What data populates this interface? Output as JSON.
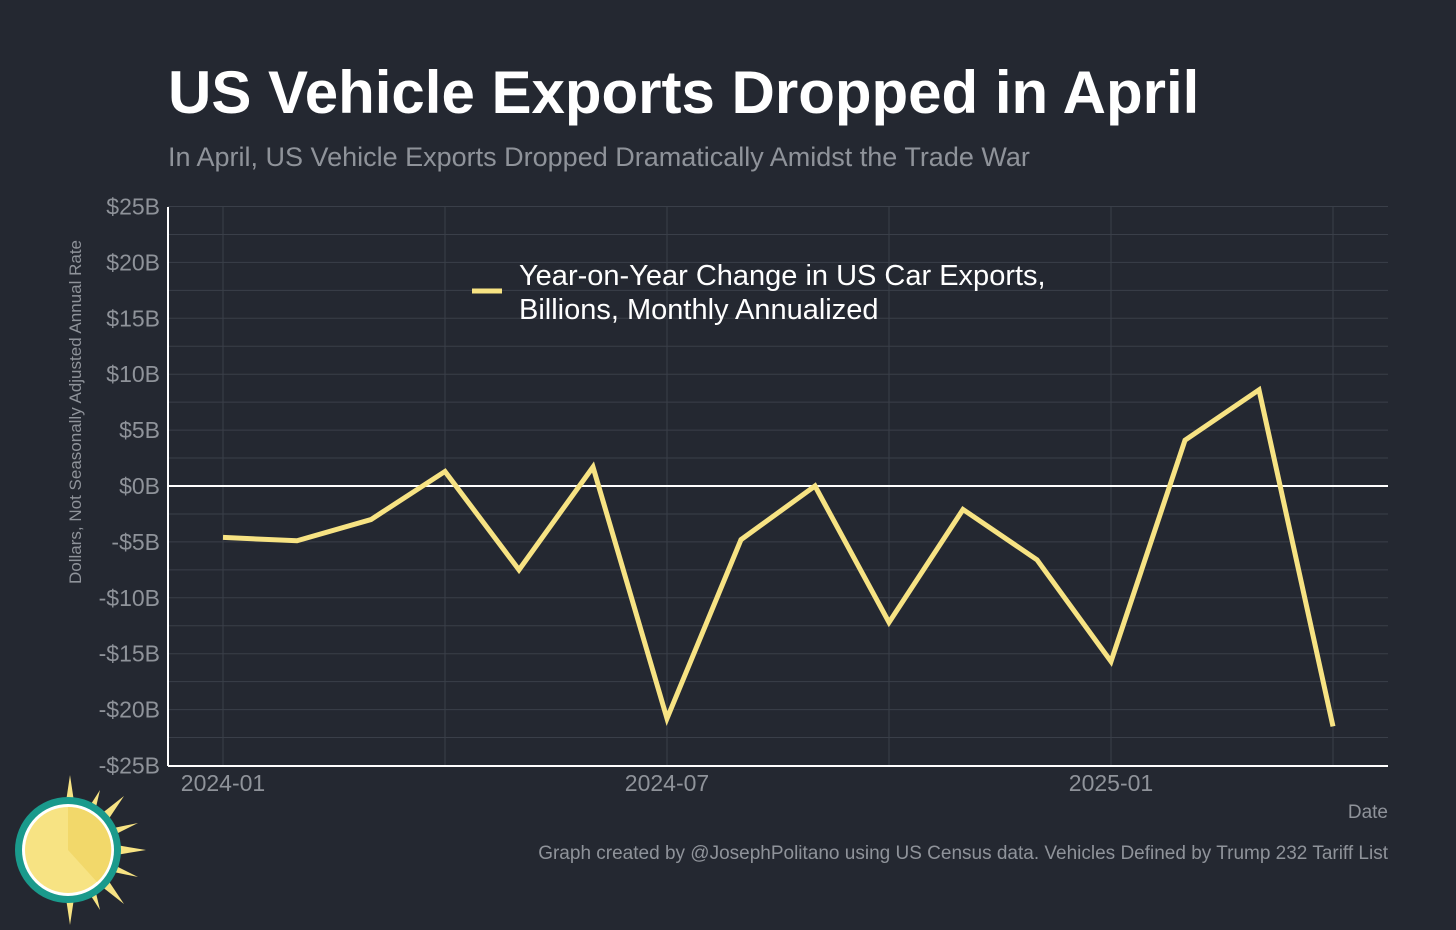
{
  "chart_data": {
    "type": "line",
    "title": "US Vehicle Exports Dropped in April",
    "subtitle": "In April, US Vehicle Exports Dropped Dramatically Amidst the Trade War",
    "xlabel": "Date",
    "ylabel": "Dollars, Not Seasonally Adjusted Annual Rate",
    "caption": "Graph created by @JosephPolitano using US Census data. Vehicles Defined by Trump 232 Tariff List",
    "ylim": [
      -25,
      25
    ],
    "yticks": [
      25,
      20,
      15,
      10,
      5,
      0,
      -5,
      -10,
      -15,
      -20,
      -25
    ],
    "ytick_labels": [
      "$25B",
      "$20B",
      "$15B",
      "$10B",
      "$5B",
      "$0B",
      "-$5B",
      "-$10B",
      "-$15B",
      "-$20B",
      "-$25B"
    ],
    "xtick_labels": [
      "2024-01",
      "2024-07",
      "2025-01"
    ],
    "xtick_index": [
      0,
      6,
      12
    ],
    "legend_placement": "top-center",
    "grid": true,
    "x": [
      "2024-01",
      "2024-02",
      "2024-03",
      "2024-04",
      "2024-05",
      "2024-06",
      "2024-07",
      "2024-08",
      "2024-09",
      "2024-10",
      "2024-11",
      "2024-12",
      "2025-01",
      "2025-02",
      "2025-03",
      "2025-04"
    ],
    "series": [
      {
        "name": "Year-on-Year Change in US Car Exports, Billions, Monthly Annualized",
        "legend_lines": [
          "Year-on-Year Change in US Car Exports,",
          "Billions, Monthly Annualized"
        ],
        "color": "#f7e383",
        "values": [
          -4.6,
          -4.9,
          -3.0,
          1.3,
          -7.5,
          1.7,
          -20.8,
          -4.8,
          0.0,
          -12.2,
          -2.1,
          -6.6,
          -15.7,
          4.1,
          8.6,
          -21.5
        ]
      }
    ]
  }
}
